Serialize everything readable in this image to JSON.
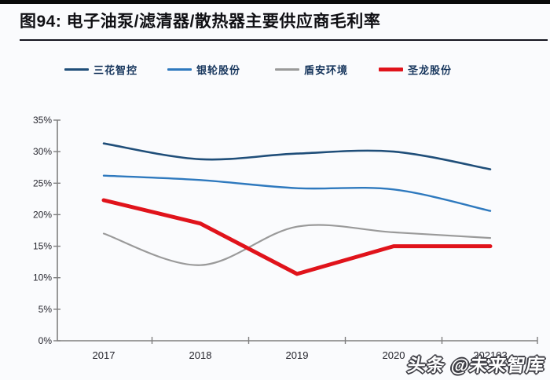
{
  "header": {
    "title": "图94: 电子油泵/滤清器/散热器主要供应商毛利率"
  },
  "legend": {
    "items": [
      {
        "label": "三花智控",
        "color": "#1f4e79"
      },
      {
        "label": "银轮股份",
        "color": "#2e79be"
      },
      {
        "label": "盾安环境",
        "color": "#9a9a9a"
      },
      {
        "label": "圣龙股份",
        "color": "#e0131b"
      }
    ]
  },
  "chart_data": {
    "type": "line",
    "title": "电子油泵/滤清器/散热器主要供应商毛利率",
    "categories": [
      "2017",
      "2018",
      "2019",
      "2020",
      "202103"
    ],
    "series": [
      {
        "name": "三花智控",
        "color": "#1f4e79",
        "width": 2.6,
        "smooth": true,
        "values": [
          31.3,
          28.8,
          29.7,
          30.0,
          27.2
        ]
      },
      {
        "name": "银轮股份",
        "color": "#2e79be",
        "width": 2.4,
        "smooth": true,
        "values": [
          26.2,
          25.5,
          24.2,
          24.0,
          20.6
        ]
      },
      {
        "name": "盾安环境",
        "color": "#9a9a9a",
        "width": 2.2,
        "smooth": true,
        "values": [
          17.0,
          12.0,
          18.1,
          17.2,
          16.3
        ]
      },
      {
        "name": "圣龙股份",
        "color": "#e0131b",
        "width": 5.0,
        "smooth": false,
        "values": [
          22.3,
          18.6,
          10.6,
          15.0,
          15.0
        ]
      }
    ],
    "ylim": [
      0,
      35
    ],
    "y_tick_step": 5,
    "y_tick_labels": [
      "0%",
      "5%",
      "10%",
      "15%",
      "20%",
      "25%",
      "30%",
      "35%"
    ],
    "xlabel": "",
    "ylabel": "",
    "grid": false,
    "legend_position": "top",
    "axis_color": "#7f7f7f",
    "tick_label_color": "#26262e"
  },
  "watermark": {
    "text": "头条 @未来智库"
  }
}
